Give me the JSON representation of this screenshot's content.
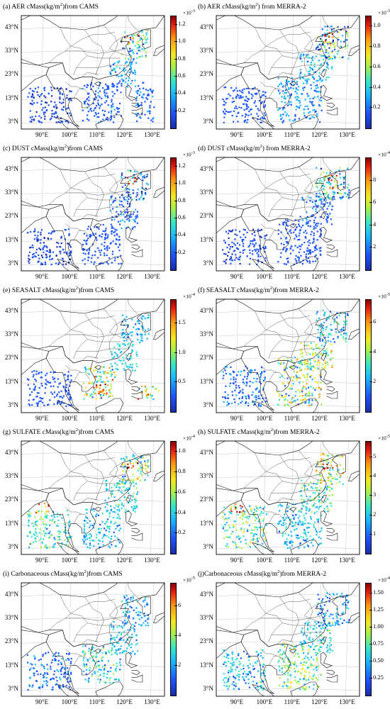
{
  "latitude_labels": [
    "43°N",
    "33°N",
    "23°N",
    "13°N",
    "3°N"
  ],
  "longitude_labels": [
    "90°E",
    "100°E",
    "110°E",
    "120°E",
    "130°E"
  ],
  "colormap": [
    "#1a2ba8",
    "#1d55ff",
    "#19b6ff",
    "#35e6c8",
    "#a8f04a",
    "#f4e820",
    "#ff9a10",
    "#e81f10",
    "#8a0000"
  ],
  "panels": [
    {
      "title_pre": "(a) AER cMass(kg/m",
      "title_sup": "2",
      "title_post": ")from CAMS",
      "exponent": "×10",
      "exponent_sup": "-3",
      "ticks": [
        "1.2",
        "1.0",
        "0.8",
        "0.6",
        "0.4",
        "0.2"
      ],
      "max": 1.3
    },
    {
      "title_pre": "(b) AER cMass(kg/m",
      "title_sup": "2",
      "title_post": ") from MERRA-2",
      "exponent": "×10",
      "exponent_sup": "-3",
      "ticks": [
        "1.0",
        "0.8",
        "0.6",
        "0.4",
        "0.2"
      ],
      "max": 1.1
    },
    {
      "title_pre": "(c) DUST cMass(kg/m",
      "title_sup": "2",
      "title_post": ")from CAMS",
      "exponent": "×10",
      "exponent_sup": "-3",
      "ticks": [
        "1.2",
        "1.0",
        "0.8",
        "0.6",
        "0.4",
        "0.2"
      ],
      "max": 1.3
    },
    {
      "title_pre": "(d) DUST cMass(kg/m",
      "title_sup": "2",
      "title_post": ") from MERRA-2",
      "exponent": "×10",
      "exponent_sup": "-4",
      "ticks": [
        "8",
        "6",
        "4",
        "2"
      ],
      "max": 10
    },
    {
      "title_pre": "(e) SEASALT cMass(kg/m",
      "title_sup": "2",
      "title_post": ")from CAMS",
      "exponent": "×10",
      "exponent_sup": "-4",
      "ticks": [
        "1.5",
        "1.0",
        "0.5"
      ],
      "max": 1.9
    },
    {
      "title_pre": "(f) SEASALT cMass(kg/m",
      "title_sup": "2",
      "title_post": ")from MERRA-2",
      "exponent": "×10",
      "exponent_sup": "-5",
      "ticks": [
        "6",
        "4",
        "2"
      ],
      "max": 7.5
    },
    {
      "title_pre": "(g) SULFATE cMass(kg/m",
      "title_sup": "2",
      "title_post": ")from CAMS",
      "exponent": "×10",
      "exponent_sup": "-4",
      "ticks": [
        "1.0",
        "0.8",
        "0.6",
        "0.4",
        "0.2"
      ],
      "max": 1.1
    },
    {
      "title_pre": "(h) SULFATE cMass(kg/m",
      "title_sup": "2",
      "title_post": ")from MERRA-2",
      "exponent": "×10",
      "exponent_sup": "-5",
      "ticks": [
        "5",
        "4",
        "3",
        "2",
        "1"
      ],
      "max": 5.8
    },
    {
      "title_pre": "(i) Carbonaceous cMass(kg/m",
      "title_sup": "2",
      "title_post": ")from CAMS",
      "exponent": "×10",
      "exponent_sup": "-5",
      "ticks": [
        "6",
        "4",
        "2"
      ],
      "max": 7.5
    },
    {
      "title_pre": "(j)Carbonaceous cMass(kg/m",
      "title_sup": "2",
      "title_post": ")from MERRA-2",
      "exponent": "×10",
      "exponent_sup": "-4",
      "ticks": [
        "1.50",
        "1.25",
        "1.00",
        "0.75",
        "0.50",
        "0.25"
      ],
      "max": 1.65
    }
  ]
}
